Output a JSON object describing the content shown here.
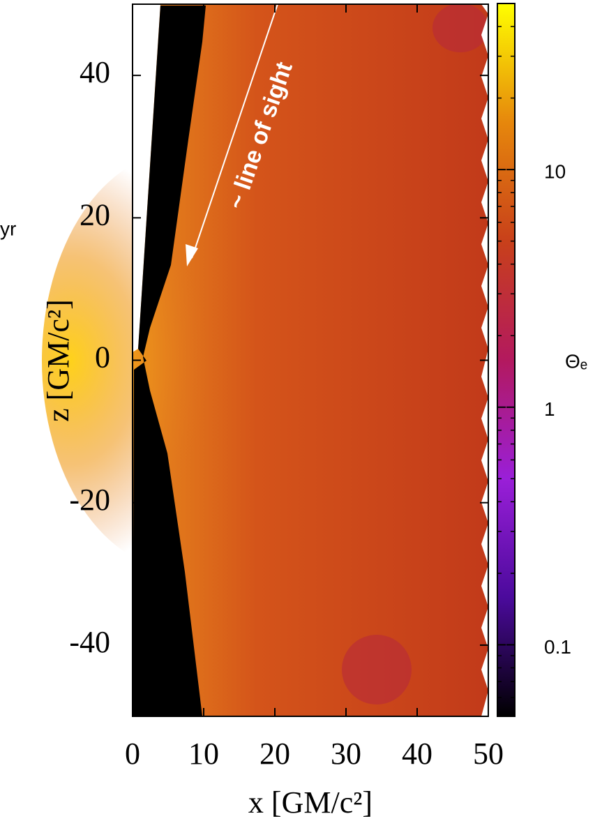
{
  "chart_data": {
    "type": "heatmap",
    "xlabel": "x [GM/c²]",
    "ylabel": "z [GM/c²]",
    "xlim": [
      0,
      50
    ],
    "xticks": [
      0,
      10,
      20,
      30,
      40,
      50
    ],
    "ylim": [
      -50,
      50
    ],
    "yticks": [
      -40,
      -20,
      0,
      20,
      40
    ],
    "annotation": "~ line of sight",
    "side_text": "yr",
    "colorbar": {
      "label": "Θₑ",
      "scale": "log",
      "lim": [
        0.05,
        50
      ],
      "ticks": [
        0.1,
        1,
        10
      ],
      "colors": [
        "#000000",
        "#4b0a9c",
        "#9a1fd8",
        "#b3195e",
        "#c8401a",
        "#e6870c",
        "#ffff00"
      ]
    }
  }
}
